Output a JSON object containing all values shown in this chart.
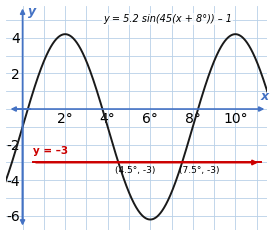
{
  "xlim": [
    -0.8,
    11.5
  ],
  "ylim": [
    -6.8,
    5.8
  ],
  "xticks": [
    2,
    4,
    6,
    8,
    10
  ],
  "yticks": [
    -6,
    -4,
    -2,
    2,
    4
  ],
  "sine_color": "#1a1a1a",
  "hline_color": "#cc0000",
  "hline_y": -3,
  "hline_label": "y = –3",
  "grid_color": "#b8d0e8",
  "bg_color": "#ddeeff",
  "axis_color": "#4472c4",
  "text_color": "#4472c4",
  "intersect1": [
    4.5,
    -3
  ],
  "intersect2": [
    7.5,
    -3
  ],
  "amplitude": 5.2,
  "vertical_shift": -1,
  "phase_shift_deg": 8,
  "freq_deg": 45,
  "figsize": [
    2.73,
    2.33
  ],
  "dpi": 100,
  "equation": "y = 5.2 sin(45(x + 8°)) – 1",
  "hline_xstart": 0.5,
  "hline_xend": 11.2
}
